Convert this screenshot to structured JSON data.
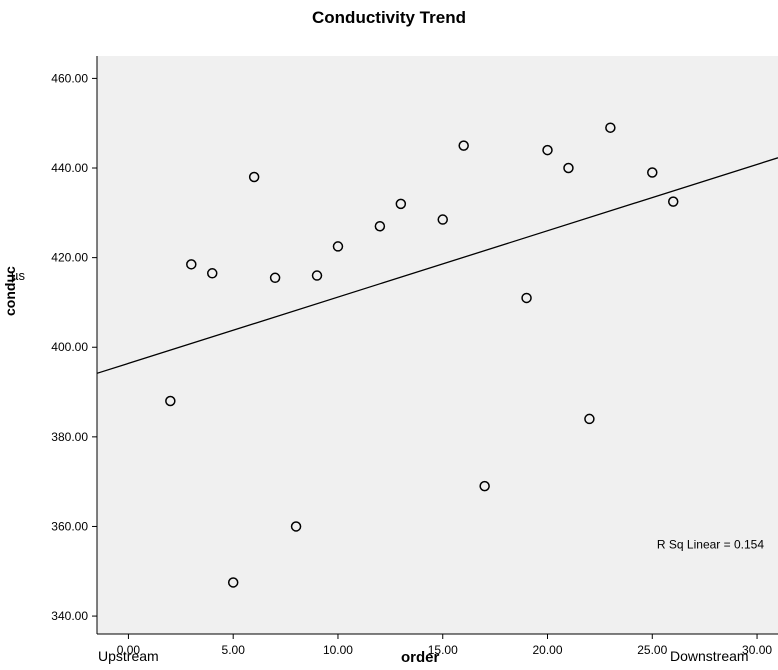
{
  "chart_data": {
    "type": "scatter",
    "title": "Conductivity Trend",
    "xlabel": "order",
    "ylabel": "conduc",
    "y_unit_label": "µs",
    "x_left_caption": "Upstream",
    "x_right_caption": "Downstream",
    "xlim": [
      -1.5,
      31.0
    ],
    "ylim": [
      336,
      465
    ],
    "x_ticks": [
      0,
      5,
      10,
      15,
      20,
      25,
      30
    ],
    "x_tick_labels": [
      "0.00",
      "5.00",
      "10.00",
      "15.00",
      "20.00",
      "25.00",
      "30.00"
    ],
    "y_ticks": [
      340,
      360,
      380,
      400,
      420,
      440,
      460
    ],
    "y_tick_labels": [
      "340.00",
      "360.00",
      "380.00",
      "400.00",
      "420.00",
      "440.00",
      "460.00"
    ],
    "points": [
      {
        "x": 2,
        "y": 388
      },
      {
        "x": 3,
        "y": 418.5
      },
      {
        "x": 4,
        "y": 416.5
      },
      {
        "x": 5,
        "y": 347.5
      },
      {
        "x": 6,
        "y": 438
      },
      {
        "x": 7,
        "y": 415.5
      },
      {
        "x": 8,
        "y": 360
      },
      {
        "x": 9,
        "y": 416
      },
      {
        "x": 10,
        "y": 422.5
      },
      {
        "x": 12,
        "y": 427
      },
      {
        "x": 13,
        "y": 432
      },
      {
        "x": 15,
        "y": 428.5
      },
      {
        "x": 16,
        "y": 445
      },
      {
        "x": 17,
        "y": 369
      },
      {
        "x": 19,
        "y": 411
      },
      {
        "x": 20,
        "y": 444
      },
      {
        "x": 21,
        "y": 440
      },
      {
        "x": 22,
        "y": 384
      },
      {
        "x": 23,
        "y": 449
      },
      {
        "x": 25,
        "y": 439
      },
      {
        "x": 26,
        "y": 432.5
      }
    ],
    "fit_line": {
      "intercept": 396.4,
      "slope": 1.48
    },
    "annotation": "R Sq Linear = 0.154",
    "plot_background": "#f0f0f0",
    "grid": false
  }
}
